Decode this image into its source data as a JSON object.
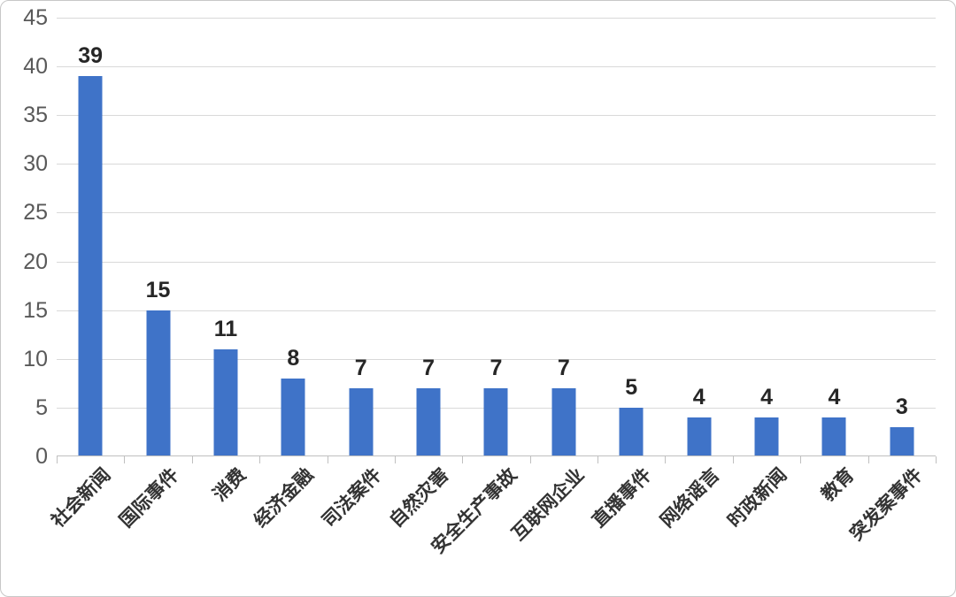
{
  "chart_data": {
    "type": "bar",
    "title": "",
    "xlabel": "",
    "ylabel": "",
    "categories": [
      "社会新闻",
      "国际事件",
      "消费",
      "经济金融",
      "司法案件",
      "自然灾害",
      "安全生产事故",
      "互联网企业",
      "直播事件",
      "网络谣言",
      "时政新闻",
      "教育",
      "突发案事件"
    ],
    "values": [
      39,
      15,
      11,
      8,
      7,
      7,
      7,
      7,
      5,
      4,
      4,
      4,
      3
    ],
    "ylim": [
      0,
      45
    ],
    "ytick_step": 5,
    "grid": true,
    "legend": "none",
    "data_labels": true,
    "colors": {
      "bar": "#3F73C8",
      "gridline": "#D9D9D9",
      "axis_line": "#BFBFBF",
      "tick_mark": "#C0C0C0",
      "y_tick_label": "#595959",
      "data_label": "#262626",
      "category_label": "#333333"
    }
  }
}
